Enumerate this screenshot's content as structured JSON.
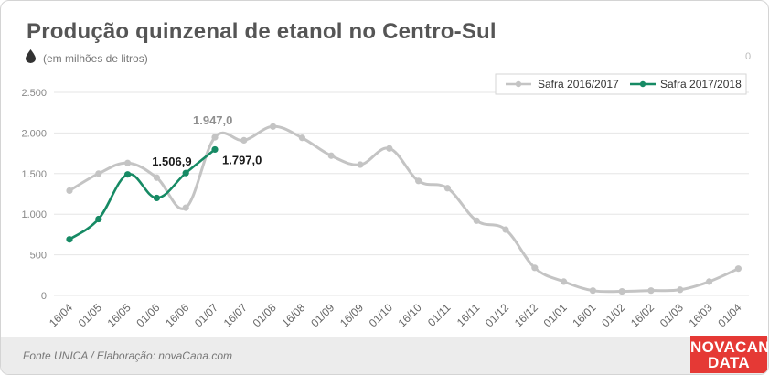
{
  "title": "Produção quinzenal de etanol no Centro-Sul",
  "subtitle": "(em milhões de litros)",
  "corner_label": "0",
  "source": "Fonte UNICA / Elaboração: novaCana.com",
  "logo": {
    "line1": "NOVACANA",
    "line2": "DATA"
  },
  "colors": {
    "series_2016": "#c4c4c4",
    "series_2017": "#168a64",
    "label_2016": "#8f8f8f",
    "label_2017": "#1a1a1a",
    "grid": "#e6e6e6",
    "tick": "#666666",
    "logo_bg": "#e53935"
  },
  "icons": {
    "drop": "droplet-icon"
  },
  "chart_data": {
    "type": "line",
    "categories": [
      "16/04",
      "01/05",
      "16/05",
      "01/06",
      "16/06",
      "01/07",
      "16/07",
      "01/08",
      "16/08",
      "01/09",
      "16/09",
      "01/10",
      "16/10",
      "01/11",
      "16/11",
      "01/12",
      "16/12",
      "01/01",
      "16/01",
      "01/02",
      "16/02",
      "01/03",
      "16/03",
      "01/04"
    ],
    "ylim": [
      0,
      2500
    ],
    "yticks": [
      0,
      500,
      1000,
      1500,
      2000,
      2500
    ],
    "ytick_labels": [
      "0",
      "500",
      "1.000",
      "1.500",
      "2.000",
      "2.500"
    ],
    "grid": true,
    "legend_position": "top-right",
    "series": [
      {
        "name": "Safra 2016/2017",
        "values": [
          1290,
          1500,
          1630,
          1450,
          1080,
          1947,
          1910,
          2080,
          1940,
          1720,
          1610,
          1810,
          1410,
          1320,
          920,
          810,
          340,
          170,
          60,
          50,
          60,
          70,
          170,
          330
        ]
      },
      {
        "name": "Safra 2017/2018",
        "values": [
          690,
          940,
          1490,
          1200,
          1506.9,
          1797,
          null,
          null,
          null,
          null,
          null,
          null,
          null,
          null,
          null,
          null,
          null,
          null,
          null,
          null,
          null,
          null,
          null,
          null
        ]
      }
    ],
    "annotations": [
      {
        "series": 0,
        "index": 5,
        "text": "1.947,0"
      },
      {
        "series": 1,
        "index": 4,
        "text": "1.506,9"
      },
      {
        "series": 1,
        "index": 5,
        "text": "1.797,0"
      }
    ]
  }
}
